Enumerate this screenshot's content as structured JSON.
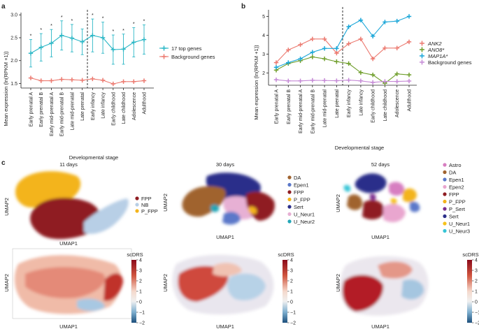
{
  "figure": {
    "panel_a_letter": "a",
    "panel_b_letter": "b",
    "panel_c_letter": "c"
  },
  "colors": {
    "teal": "#2bb7c6",
    "salmon": "#ec7a70",
    "green": "#6f9e2b",
    "blue": "#1aa6d8",
    "violet": "#c58ad6",
    "dark": "#222222"
  },
  "chart_data": [
    {
      "id": "a",
      "type": "line",
      "title": "",
      "xlabel": "Developmental stage",
      "ylabel": "Mean expression (ln(RPKM +1))",
      "ylim": [
        1.4,
        3.05
      ],
      "yticks": [
        1.5,
        2.0,
        2.5,
        3.0
      ],
      "categories": [
        "Early prenatal A",
        "Early prenatal B",
        "Early mid-prenatal A",
        "Early mid-prenatal B",
        "Late mid-prenatal",
        "Late prenatal",
        "Early infancy",
        "Late infancy",
        "Early childhood",
        "Late childhood",
        "Adolescence",
        "Adulthood"
      ],
      "divider_after": "Late prenatal",
      "series": [
        {
          "name": "17 top genes",
          "color": "#2bb7c6",
          "values": [
            2.16,
            2.29,
            2.38,
            2.55,
            2.49,
            2.41,
            2.55,
            2.5,
            2.24,
            2.25,
            2.4,
            2.46
          ],
          "err": [
            0.3,
            0.3,
            0.3,
            0.32,
            0.3,
            0.28,
            0.36,
            0.34,
            0.32,
            0.33,
            0.32,
            0.32
          ]
        },
        {
          "name": "Background genes",
          "color": "#ec7a70",
          "values": [
            1.62,
            1.56,
            1.56,
            1.59,
            1.58,
            1.57,
            1.6,
            1.57,
            1.49,
            1.54,
            1.54,
            1.56
          ]
        }
      ],
      "significance_marker": "*",
      "significant": [
        true,
        true,
        true,
        true,
        true,
        false,
        true,
        true,
        true,
        true,
        true,
        true
      ]
    },
    {
      "id": "b",
      "type": "line",
      "title": "",
      "xlabel": "Developmental stage",
      "ylabel": "Mean expression (ln(RPKM +1))",
      "ylim": [
        1.35,
        5.35
      ],
      "yticks": [
        2,
        3,
        4,
        5
      ],
      "categories": [
        "Early prenatal A",
        "Early prenatal B",
        "Early mid-prenatal A",
        "Early mid-prenatal B",
        "Late mid-prenatal",
        "Late prenatal",
        "Early infancy",
        "Late infancy",
        "Early childhood",
        "Late childhood",
        "Adolescence",
        "Adulthood"
      ],
      "divider_after": "Late prenatal",
      "series": [
        {
          "name": "ANK2",
          "color": "#ec7a70",
          "italic": true,
          "values": [
            2.55,
            3.22,
            3.5,
            3.8,
            3.8,
            3.05,
            3.55,
            3.8,
            2.75,
            3.32,
            3.32,
            3.65
          ]
        },
        {
          "name": "ANO8*",
          "color": "#6f9e2b",
          "italic": true,
          "values": [
            2.15,
            2.5,
            2.65,
            2.85,
            2.75,
            2.6,
            2.5,
            2.02,
            1.9,
            1.45,
            1.95,
            1.9
          ]
        },
        {
          "name": "MAP1A*",
          "color": "#1aa6d8",
          "italic": true,
          "values": [
            2.3,
            2.55,
            2.75,
            3.1,
            3.3,
            3.3,
            4.45,
            4.8,
            3.95,
            4.7,
            4.75,
            5.0
          ]
        },
        {
          "name": "Background genes",
          "color": "#c58ad6",
          "italic": false,
          "values": [
            1.64,
            1.58,
            1.58,
            1.61,
            1.6,
            1.59,
            1.62,
            1.58,
            1.5,
            1.55,
            1.55,
            1.57
          ]
        }
      ]
    }
  ],
  "panel_c": {
    "top": [
      {
        "title": "11 days",
        "xlabel": "UMAP1",
        "ylabel": "UMAP2",
        "legend": [
          {
            "label": "FPP",
            "color": "#8f1d22"
          },
          {
            "label": "NB",
            "color": "#b8cfe6"
          },
          {
            "label": "P_FPP",
            "color": "#f3b41b"
          }
        ]
      },
      {
        "title": "30 days",
        "xlabel": "UMAP1",
        "ylabel": "UMAP2",
        "legend": [
          {
            "label": "DA",
            "color": "#a0632f"
          },
          {
            "label": "Epen1",
            "color": "#5b78c9"
          },
          {
            "label": "FPP",
            "color": "#8f1d22"
          },
          {
            "label": "P_FPP",
            "color": "#f3b41b"
          },
          {
            "label": "Sert",
            "color": "#2b2f8a"
          },
          {
            "label": "U_Neur1",
            "color": "#e7b0d4"
          },
          {
            "label": "U_Neur2",
            "color": "#23a6b7"
          }
        ]
      },
      {
        "title": "52 days",
        "xlabel": "UMAP1",
        "ylabel": "UMAP2",
        "legend": [
          {
            "label": "Astro",
            "color": "#d77ec1"
          },
          {
            "label": "DA",
            "color": "#a0632f"
          },
          {
            "label": "Epen1",
            "color": "#5b78c9"
          },
          {
            "label": "Epen2",
            "color": "#e9a6cf"
          },
          {
            "label": "FPP",
            "color": "#8f1d22"
          },
          {
            "label": "P_FPP",
            "color": "#f3b41b"
          },
          {
            "label": "P_Sert",
            "color": "#7b2e8e"
          },
          {
            "label": "Sert",
            "color": "#2b2f8a"
          },
          {
            "label": "U_Neur1",
            "color": "#f6c21b"
          },
          {
            "label": "U_Neur3",
            "color": "#37c5d6"
          }
        ]
      }
    ],
    "bottom": [
      {
        "xlabel": "UMAP1",
        "ylabel": "UMAP2"
      },
      {
        "xlabel": "UMAP1",
        "ylabel": "UMAP2"
      },
      {
        "xlabel": "UMAP1",
        "ylabel": "UMAP2"
      }
    ],
    "colorbar": {
      "title": "scDRS",
      "ticks": [
        "4",
        "3",
        "2",
        "1",
        "0",
        "−1",
        "−2"
      ]
    }
  }
}
